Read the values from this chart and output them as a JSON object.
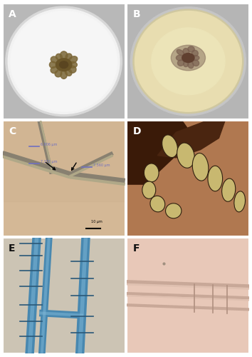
{
  "figure_layout": {
    "rows": 3,
    "cols": 2,
    "figsize": [
      3.54,
      5.0
    ],
    "dpi": 100
  },
  "panels": [
    {
      "label": "A",
      "bg_color": "#c0c0c0",
      "colony_bg": "#f5f5f5",
      "colony_texture": "#e8e8e8",
      "rim_color": "#d0d0d0",
      "sclerotia_color": "#7a6535",
      "sclerotia_dark": "#5a4520",
      "label_color": "white"
    },
    {
      "label": "B",
      "bg_color": "#b0b0b0",
      "colony_bg": "#e8ddb0",
      "rim_color": "#c8c8c8",
      "sclerotia_color": "#806050",
      "sclerotia_dark": "#604030",
      "label_color": "white"
    },
    {
      "label": "C",
      "bg_color": "#d4b896",
      "hypha_color": "#b0a888",
      "hypha_dark": "#888070",
      "measure_color": "#7070c0",
      "label_color": "white"
    },
    {
      "label": "D",
      "bg_color": "#b07850",
      "tissue_color": "#5a3010",
      "cell_color": "#c8b070",
      "cell_outline": "#402010",
      "label_color": "white"
    },
    {
      "label": "E",
      "bg_color": "#ccc4b4",
      "hypha_color": "#4888b0",
      "hypha_light": "#80b8d8",
      "label_color": "#111111"
    },
    {
      "label": "F",
      "bg_color": "#e8c8b8",
      "hypha_color": "#d4b0a0",
      "hypha_light": "#e8d0c0",
      "label_color": "#111111"
    }
  ],
  "outer_bg": "#ffffff",
  "label_fontsize": 10,
  "label_weight": "bold"
}
